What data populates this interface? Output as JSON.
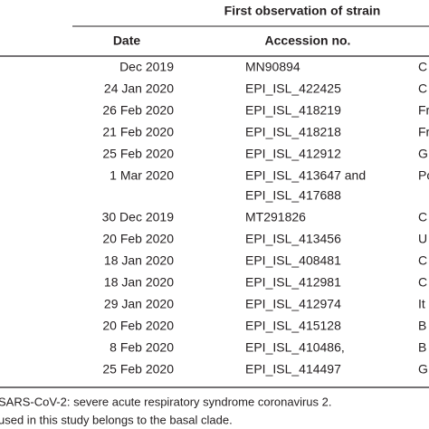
{
  "table": {
    "group_header": "First observation of strain",
    "columns": [
      "Date",
      "Accession no."
    ],
    "rows": [
      {
        "date": "Dec 2019",
        "accession": [
          "MN90894"
        ],
        "origin": "C"
      },
      {
        "date": "24 Jan 2020",
        "accession": [
          "EPI_ISL_422425"
        ],
        "origin": "C"
      },
      {
        "date": "26 Feb 2020",
        "accession": [
          "EPI_ISL_418219"
        ],
        "origin": "Fr"
      },
      {
        "date": "21 Feb 2020",
        "accession": [
          "EPI_ISL_418218"
        ],
        "origin": "Fr"
      },
      {
        "date": "25 Feb 2020",
        "accession": [
          "EPI_ISL_412912"
        ],
        "origin": "G"
      },
      {
        "date": "1 Mar 2020",
        "accession": [
          "EPI_ISL_413647 and",
          "EPI_ISL_417688"
        ],
        "origin": "Po"
      },
      {
        "date": "30 Dec 2019",
        "accession": [
          "MT291826"
        ],
        "origin": "C"
      },
      {
        "date": "20 Feb 2020",
        "accession": [
          "EPI_ISL_413456"
        ],
        "origin": "U"
      },
      {
        "date": "18 Jan 2020",
        "accession": [
          "EPI_ISL_408481"
        ],
        "origin": "C"
      },
      {
        "date": "18 Jan 2020",
        "accession": [
          "EPI_ISL_412981"
        ],
        "origin": "C"
      },
      {
        "date": "29 Jan 2020",
        "accession": [
          "EPI_ISL_412974"
        ],
        "origin": "It"
      },
      {
        "date": "20 Feb 2020",
        "accession": [
          "EPI_ISL_415128"
        ],
        "origin": "B"
      },
      {
        "date": "8 Feb 2020",
        "accession": [
          "EPI_ISL_410486,"
        ],
        "origin": "B"
      },
      {
        "date": "25 Feb 2020",
        "accession": [
          "EPI_ISL_414497"
        ],
        "origin": "G"
      }
    ],
    "footnotes": [
      "SARS-CoV-2: severe acute respiratory syndrome coronavirus 2.",
      "used in this study belongs to the basal clade."
    ]
  }
}
